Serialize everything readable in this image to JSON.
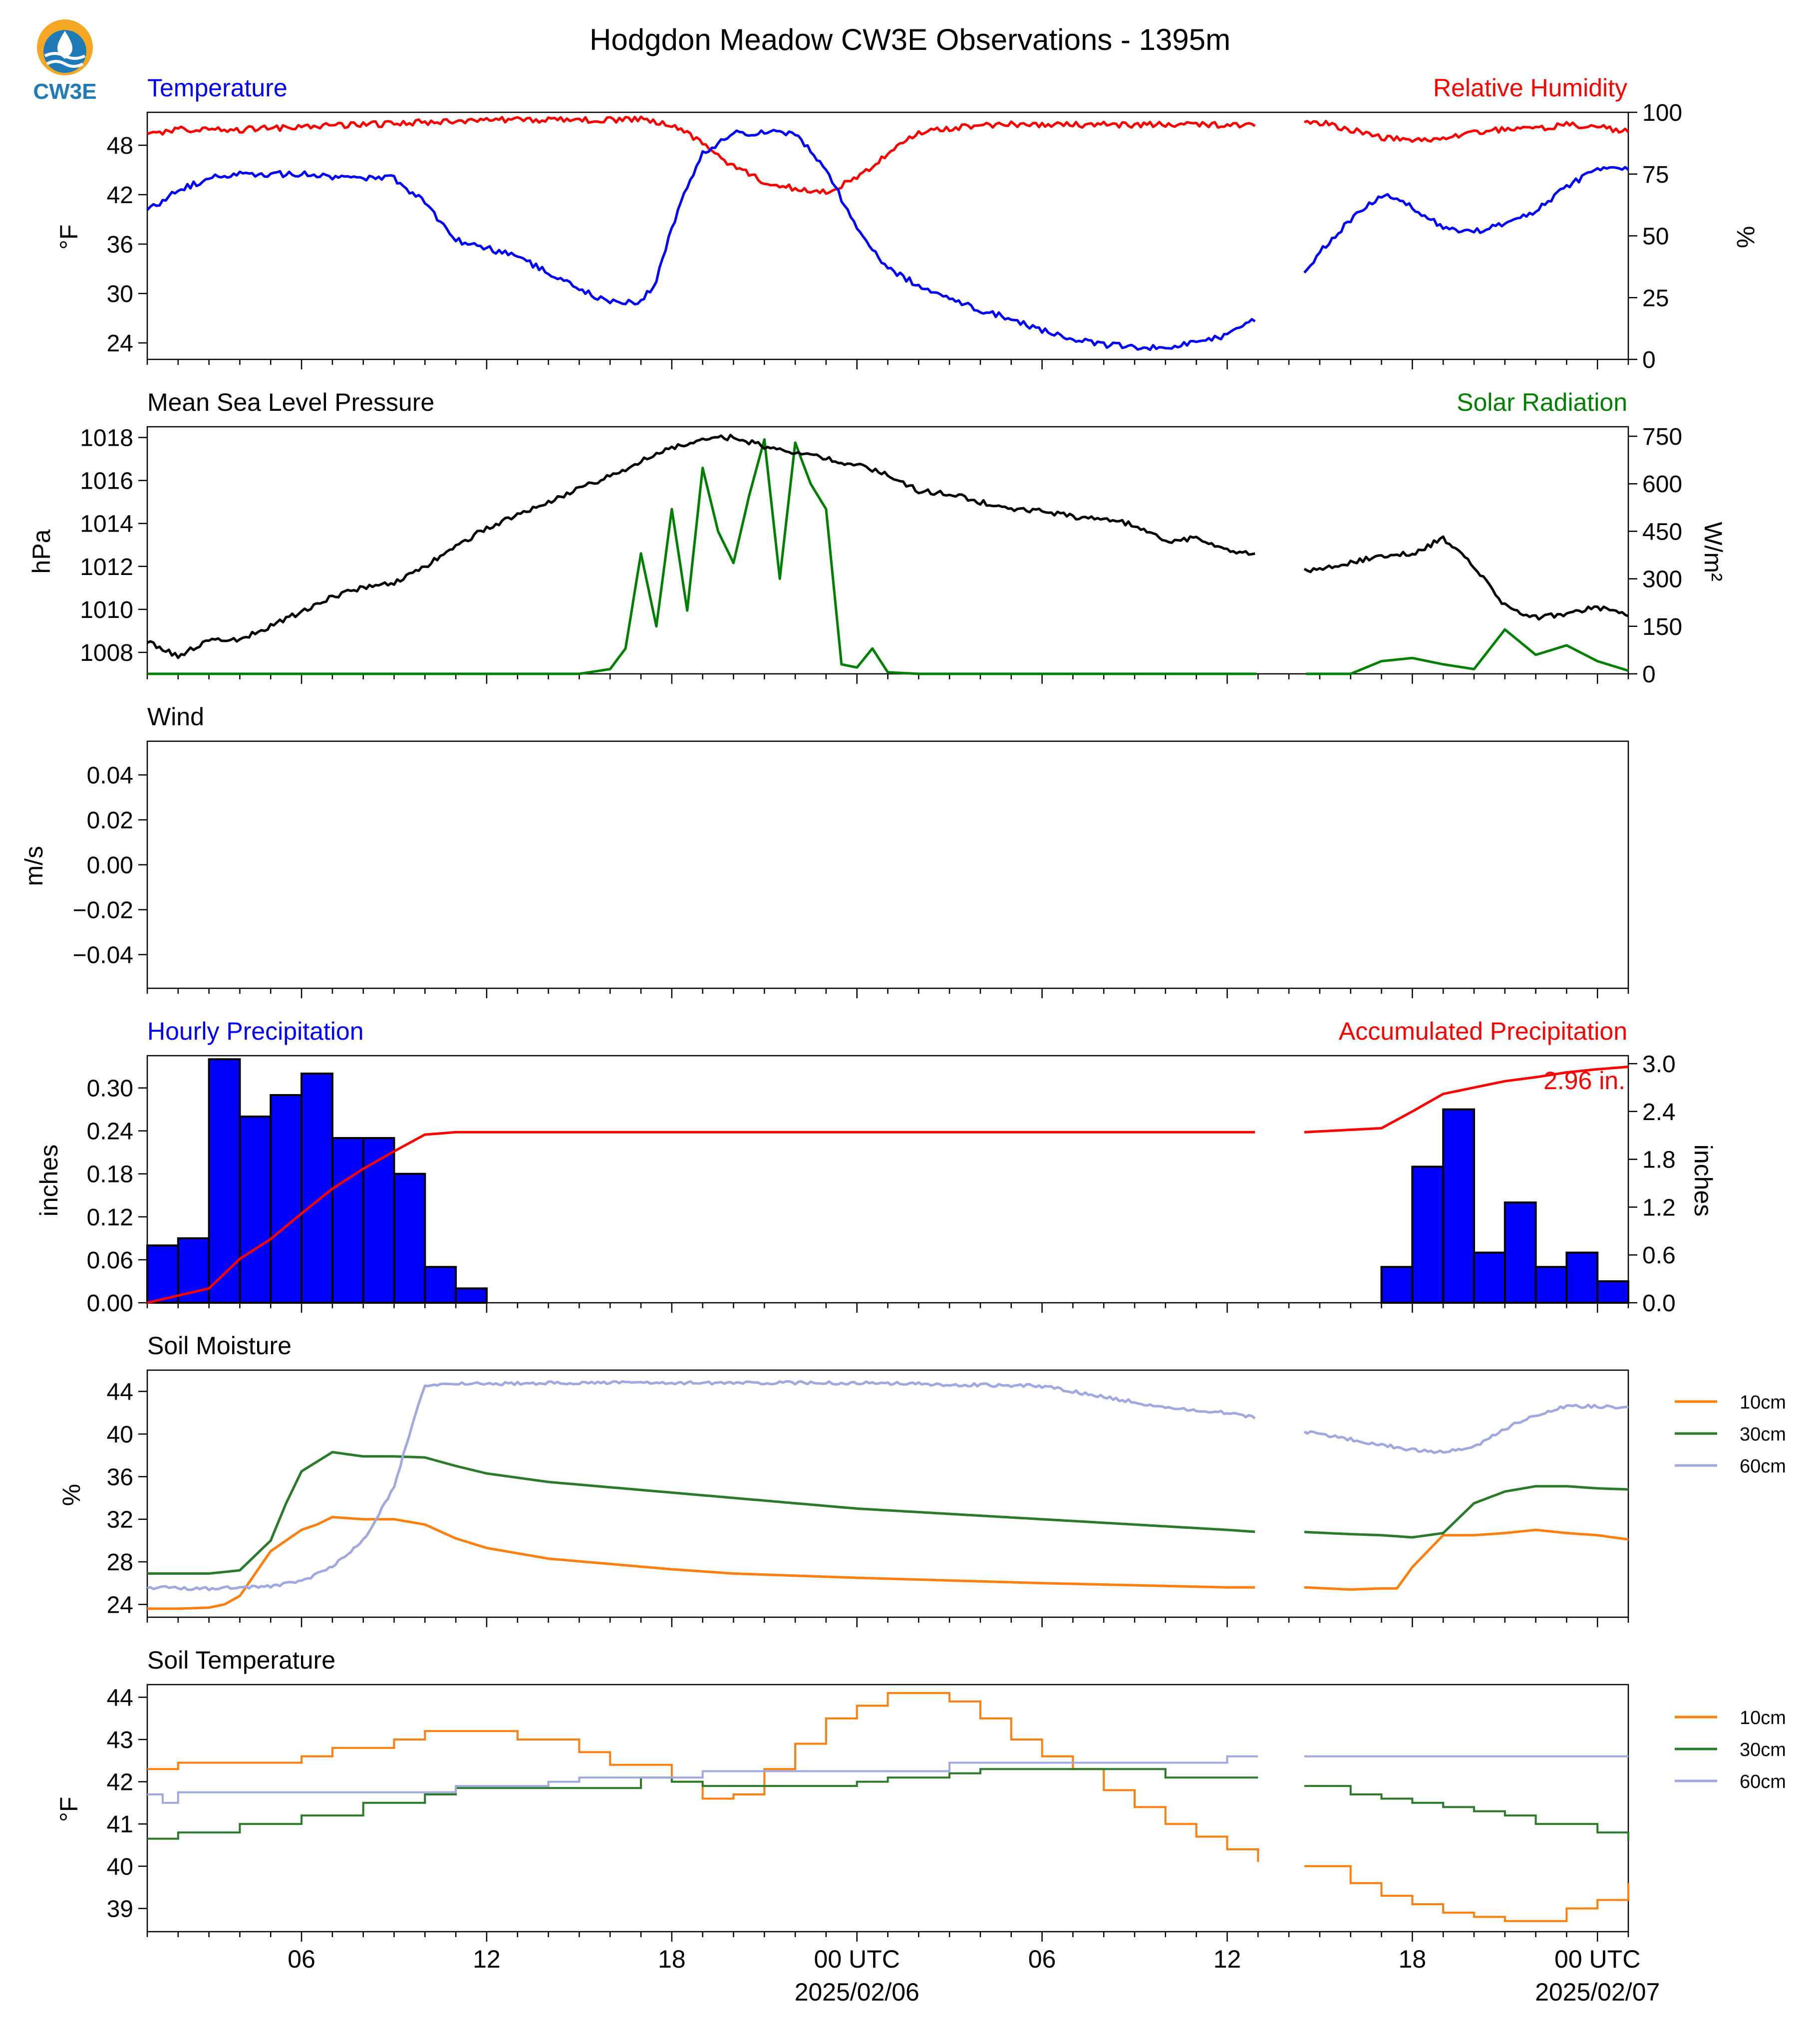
{
  "title": "Hodgdon Meadow CW3E Observations - 1395m",
  "logo": {
    "text": "CW3E"
  },
  "x_axis": {
    "tick_labels": [
      "06",
      "12",
      "18",
      "00 UTC",
      "06",
      "12",
      "18",
      "00 UTC"
    ],
    "tick_hours": [
      6,
      12,
      18,
      24,
      30,
      36,
      42,
      48
    ],
    "date_labels": [
      "2025/02/06",
      "2025/02/07"
    ],
    "date_hours": [
      24,
      48
    ],
    "range_hours": [
      1,
      49
    ]
  },
  "colors": {
    "blue": "#0000ff",
    "red": "#ff0000",
    "green": "#008000",
    "black": "#000000",
    "orange": "#ff7f0e",
    "dark_green": "#2a7a2a",
    "lavender": "#a0a8e0",
    "logo_orange": "#f5a623",
    "logo_blue": "#1f7ab8"
  },
  "panels": {
    "temperature": {
      "left_title": "Temperature",
      "right_title": "Relative Humidity",
      "ylabel_left": "°F",
      "ylabel_right": "%"
    },
    "pressure": {
      "left_title": "Mean Sea Level Pressure",
      "right_title": "Solar Radiation",
      "ylabel_left": "hPa",
      "ylabel_right": "W/m²"
    },
    "wind": {
      "left_title": "Wind",
      "ylabel_left": "m/s"
    },
    "precip": {
      "left_title": "Hourly Precipitation",
      "right_title": "Accumulated Precipitation",
      "ylabel_left": "inches",
      "ylabel_right": "inches",
      "total_label": "2.96 in."
    },
    "soil_moisture": {
      "left_title": "Soil Moisture",
      "ylabel_left": "%",
      "legend": [
        "10cm",
        "30cm",
        "60cm"
      ]
    },
    "soil_temperature": {
      "left_title": "Soil Temperature",
      "ylabel_left": "°F",
      "legend": [
        "10cm",
        "30cm",
        "60cm"
      ]
    }
  },
  "chart_data": [
    {
      "type": "line",
      "title": "Temperature",
      "ylabel": "°F",
      "ylim": [
        22,
        52
      ],
      "yticks": [
        24,
        30,
        36,
        42,
        48
      ],
      "x_hours": [
        1,
        2,
        3,
        4,
        5,
        6,
        7,
        8,
        9,
        9.5,
        10,
        11,
        12,
        13,
        14,
        15,
        16,
        17,
        17.5,
        18,
        18.5,
        19,
        20,
        21,
        22,
        23,
        24,
        25,
        26,
        27,
        28,
        29,
        30,
        31,
        32,
        33,
        34,
        35,
        36,
        37,
        38,
        39,
        40,
        41,
        42,
        43,
        44,
        45,
        46,
        47,
        48,
        49
      ],
      "values": [
        40,
        42.5,
        44,
        44.5,
        44.5,
        44.5,
        44.2,
        44,
        44,
        42.5,
        41,
        36.5,
        35.5,
        34.5,
        32.5,
        30.5,
        29,
        29,
        31.5,
        38,
        43,
        47,
        49.5,
        49.5,
        49.5,
        45,
        38,
        33,
        31,
        29.5,
        28,
        27,
        25.5,
        24.5,
        23.8,
        23.5,
        23.5,
        24,
        25,
        27,
        30,
        35,
        39,
        42,
        40.5,
        38,
        37.5,
        38.5,
        40,
        43,
        45,
        45
      ],
      "gap_hours": [
        37,
        38.5
      ]
    },
    {
      "type": "line",
      "title": "Relative Humidity",
      "ylabel": "%",
      "ylim": [
        0,
        100
      ],
      "yticks": [
        0,
        25,
        50,
        75,
        100
      ],
      "x_hours": [
        1,
        2,
        4,
        6,
        8,
        10,
        12,
        14,
        16,
        17,
        18,
        19,
        20,
        21,
        22,
        23,
        24,
        25,
        26,
        28,
        30,
        32,
        34,
        36,
        37,
        38.5,
        39,
        40,
        41,
        42,
        43,
        44,
        45,
        46,
        47,
        48,
        49
      ],
      "values": [
        91,
        93,
        93,
        94,
        95,
        96,
        97,
        97,
        97,
        97,
        95,
        88,
        78,
        72,
        69,
        68,
        73,
        83,
        92,
        95,
        95,
        95,
        95,
        95,
        95,
        96,
        96,
        93,
        90,
        88,
        90,
        92,
        93,
        93,
        95,
        94,
        92
      ],
      "gap_hours": [
        37,
        38.5
      ]
    },
    {
      "type": "line",
      "title": "Mean Sea Level Pressure",
      "ylabel": "hPa",
      "ylim": [
        1007,
        1018.5
      ],
      "yticks": [
        1008,
        1010,
        1012,
        1014,
        1016,
        1018
      ],
      "x_hours": [
        1,
        2,
        3,
        4,
        5,
        6,
        7,
        8,
        9,
        10,
        11,
        12,
        13,
        14,
        15,
        16,
        17,
        18,
        19,
        20,
        21,
        22,
        23,
        24,
        25,
        26,
        27,
        28,
        29,
        30,
        31,
        32,
        33,
        34,
        35,
        36,
        37,
        38.5,
        39,
        40,
        41,
        42,
        43,
        44,
        45,
        46,
        47,
        48,
        49
      ],
      "values": [
        1008.5,
        1007.8,
        1008.6,
        1008.6,
        1009.2,
        1009.9,
        1010.6,
        1011,
        1011.2,
        1012,
        1012.9,
        1013.8,
        1014.4,
        1015,
        1015.6,
        1016.2,
        1016.9,
        1017.5,
        1018,
        1018,
        1017.6,
        1017.3,
        1017,
        1016.7,
        1016.3,
        1015.5,
        1015.4,
        1015,
        1014.6,
        1014.6,
        1014.3,
        1014.3,
        1013.9,
        1013.2,
        1013.3,
        1012.8,
        1012.5,
        1011.8,
        1011.8,
        1012.2,
        1012.5,
        1012.6,
        1013.3,
        1012,
        1010.2,
        1009.6,
        1009.8,
        1010.1,
        1009.7
      ],
      "gap_hours": [
        37,
        38.5
      ]
    },
    {
      "type": "line",
      "title": "Solar Radiation",
      "ylabel": "W/m²",
      "ylim": [
        0,
        780
      ],
      "yticks": [
        0,
        150,
        300,
        450,
        600,
        750
      ],
      "x_hours": [
        1,
        15,
        16,
        16.5,
        17,
        17.5,
        18,
        18.5,
        19,
        19.5,
        20,
        20.5,
        21,
        21.5,
        22,
        22.5,
        23,
        23.5,
        24,
        24.5,
        25,
        26,
        37,
        38.5,
        40,
        41,
        42,
        43,
        44,
        45,
        46,
        47,
        48,
        49
      ],
      "values": [
        0,
        0,
        15,
        80,
        380,
        150,
        520,
        200,
        650,
        450,
        350,
        560,
        740,
        300,
        730,
        600,
        520,
        30,
        20,
        80,
        5,
        0,
        0,
        0,
        0,
        40,
        50,
        30,
        15,
        140,
        60,
        90,
        40,
        10
      ],
      "gap_hours": [
        37,
        38.5
      ]
    },
    {
      "type": "line",
      "title": "Wind",
      "ylabel": "m/s",
      "ylim": [
        -0.055,
        0.055
      ],
      "yticks": [
        0.04,
        0.02,
        0.0,
        -0.02,
        -0.04
      ],
      "ytick_labels": [
        "0.04",
        "0.02",
        "0.00",
        "−0.02",
        "−0.04"
      ],
      "values": []
    },
    {
      "type": "bar",
      "title": "Hourly Precipitation",
      "ylabel": "inches",
      "ylim": [
        0,
        0.345
      ],
      "yticks": [
        0.0,
        0.06,
        0.12,
        0.18,
        0.24,
        0.3
      ],
      "ytick_labels": [
        "0.00",
        "0.06",
        "0.12",
        "0.18",
        "0.24",
        "0.30"
      ],
      "bar_hours": [
        1,
        2,
        3,
        4,
        5,
        6,
        7,
        8,
        9,
        10,
        11,
        41,
        42,
        43,
        44,
        45,
        46,
        47,
        48
      ],
      "values": [
        0.08,
        0.09,
        0.34,
        0.26,
        0.29,
        0.32,
        0.23,
        0.23,
        0.18,
        0.05,
        0.02,
        0.05,
        0.19,
        0.27,
        0.07,
        0.14,
        0.05,
        0.07,
        0.03
      ]
    },
    {
      "type": "line",
      "title": "Accumulated Precipitation",
      "ylabel": "inches",
      "ylim": [
        0,
        3.1
      ],
      "yticks": [
        0.0,
        0.6,
        1.2,
        1.8,
        2.4,
        3.0
      ],
      "x_hours": [
        1,
        2,
        3,
        4,
        5,
        6,
        7,
        8,
        9,
        10,
        11,
        12,
        37,
        38.5,
        41,
        42,
        43,
        44,
        45,
        46,
        47,
        48,
        49
      ],
      "values": [
        0,
        0.09,
        0.18,
        0.55,
        0.8,
        1.12,
        1.43,
        1.68,
        1.9,
        2.11,
        2.14,
        2.14,
        2.14,
        2.14,
        2.19,
        2.4,
        2.62,
        2.7,
        2.78,
        2.83,
        2.89,
        2.93,
        2.96
      ],
      "gap_hours": [
        37,
        38.5
      ]
    },
    {
      "type": "line",
      "title": "Soil Moisture",
      "ylabel": "%",
      "ylim": [
        22.8,
        46
      ],
      "yticks": [
        24,
        28,
        32,
        36,
        40,
        44
      ],
      "series": [
        {
          "name": "10cm",
          "x_hours": [
            1,
            2,
            3,
            3.5,
            4,
            5,
            6,
            6.5,
            7,
            8,
            9,
            10,
            11,
            12,
            14,
            16,
            18,
            20,
            24,
            30,
            36,
            37,
            38.5,
            40,
            41,
            41.5,
            42,
            43,
            44,
            45,
            46,
            47,
            48,
            49
          ],
          "values": [
            23.6,
            23.6,
            23.7,
            24,
            24.8,
            29,
            31,
            31.5,
            32.2,
            32,
            32,
            31.5,
            30.2,
            29.3,
            28.3,
            27.8,
            27.3,
            26.9,
            26.5,
            26,
            25.6,
            25.6,
            25.6,
            25.4,
            25.5,
            25.5,
            27.5,
            30.5,
            30.5,
            30.7,
            31,
            30.7,
            30.5,
            30.1
          ]
        },
        {
          "name": "30cm",
          "x_hours": [
            1,
            2,
            3,
            4,
            5,
            5.5,
            6,
            7,
            8,
            9,
            10,
            11,
            12,
            14,
            16,
            18,
            20,
            24,
            30,
            36,
            37,
            38.5,
            40,
            41,
            42,
            43,
            44,
            45,
            46,
            47,
            48,
            49
          ],
          "values": [
            26.9,
            26.9,
            26.9,
            27.2,
            30,
            33.5,
            36.5,
            38.3,
            37.9,
            37.9,
            37.8,
            37,
            36.3,
            35.5,
            35,
            34.5,
            34,
            33,
            32,
            31,
            30.8,
            30.8,
            30.6,
            30.5,
            30.3,
            30.7,
            33.5,
            34.6,
            35.1,
            35.1,
            34.9,
            34.8
          ]
        },
        {
          "name": "60cm",
          "x_hours": [
            1,
            3,
            5,
            6,
            7,
            8,
            9,
            9.5,
            10,
            11,
            12,
            14,
            18,
            24,
            30,
            32,
            34,
            36,
            37,
            38.5,
            40,
            42,
            43,
            44,
            45,
            46,
            47,
            48,
            49
          ],
          "values": [
            25.6,
            25.5,
            25.7,
            26.2,
            27.5,
            30,
            35,
            40,
            44.6,
            44.7,
            44.7,
            44.8,
            44.8,
            44.8,
            44.5,
            43.5,
            42.5,
            42,
            41.5,
            40.2,
            39.5,
            38.5,
            38.3,
            38.8,
            40.5,
            41.8,
            42.6,
            42.6,
            42.5
          ]
        }
      ],
      "gap_hours": [
        37,
        38.5
      ]
    },
    {
      "type": "line",
      "title": "Soil Temperature",
      "ylabel": "°F",
      "ylim": [
        38.45,
        44.3
      ],
      "yticks": [
        39,
        40,
        41,
        42,
        43,
        44
      ],
      "series": [
        {
          "name": "10cm",
          "x_hours": [
            1,
            2,
            5,
            6,
            7,
            9,
            10,
            12,
            13,
            15,
            16,
            18,
            19,
            20,
            21,
            22,
            23,
            24,
            25,
            26,
            27,
            28,
            29,
            30,
            31,
            32,
            33,
            34,
            35,
            36,
            37,
            38.5,
            40,
            41,
            42,
            43,
            44,
            45,
            46,
            47,
            48,
            49
          ],
          "values": [
            42.3,
            42.45,
            42.45,
            42.6,
            42.8,
            43,
            43.2,
            43.2,
            43,
            42.7,
            42.4,
            42,
            41.6,
            41.7,
            42.3,
            42.9,
            43.5,
            43.8,
            44.1,
            44.1,
            43.9,
            43.5,
            43,
            42.6,
            42.3,
            41.8,
            41.4,
            41,
            40.7,
            40.4,
            40.1,
            40,
            39.6,
            39.3,
            39.1,
            38.9,
            38.8,
            38.7,
            38.7,
            39.0,
            39.2,
            39.6
          ]
        },
        {
          "name": "30cm",
          "x_hours": [
            1,
            2,
            3,
            4,
            6,
            8,
            10,
            11,
            13,
            17,
            18,
            19,
            22,
            24,
            25,
            26,
            27,
            28,
            30,
            33,
            34,
            35,
            36,
            37,
            38.5,
            39,
            40,
            41,
            42,
            43,
            44,
            45,
            46,
            47,
            48,
            49
          ],
          "values": [
            40.65,
            40.8,
            40.8,
            41,
            41.2,
            41.5,
            41.7,
            41.85,
            41.85,
            42.1,
            42,
            41.9,
            41.9,
            42,
            42.1,
            42.1,
            42.2,
            42.3,
            42.3,
            42.3,
            42.1,
            42.1,
            42.1,
            42.1,
            41.9,
            41.9,
            41.7,
            41.6,
            41.5,
            41.4,
            41.3,
            41.2,
            41,
            41,
            40.8,
            40.6
          ]
        },
        {
          "name": "60cm",
          "x_hours": [
            1,
            1.5,
            2,
            6,
            10,
            11,
            12,
            13,
            14,
            15,
            17,
            18,
            19,
            22,
            24,
            26,
            27,
            30,
            32,
            34,
            36,
            37,
            38.5,
            49
          ],
          "values": [
            41.7,
            41.5,
            41.75,
            41.75,
            41.75,
            41.9,
            41.9,
            41.9,
            42,
            42.1,
            42.1,
            42.1,
            42.25,
            42.25,
            42.25,
            42.25,
            42.45,
            42.45,
            42.45,
            42.45,
            42.6,
            42.6,
            42.6,
            42.6
          ]
        }
      ],
      "gap_hours": [
        37,
        38.5
      ]
    }
  ]
}
